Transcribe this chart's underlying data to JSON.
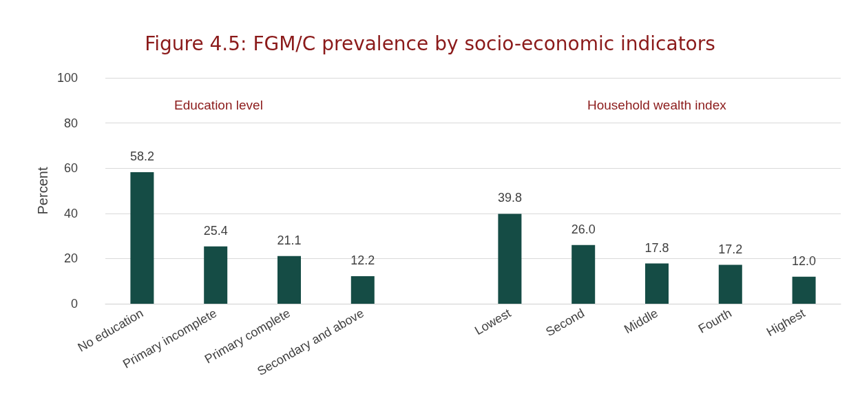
{
  "chart_data": {
    "type": "bar",
    "title": "Figure 4.5: FGM/C prevalence by socio-economic indicators",
    "ylabel": "Percent",
    "categories": [
      "No education",
      "Primary incomplete",
      "Primary complete",
      "Secondary and above",
      null,
      "Lowest",
      "Second",
      "Middle",
      "Fourth",
      "Highest"
    ],
    "values": [
      58.2,
      25.4,
      21.1,
      12.2,
      null,
      39.8,
      26.0,
      17.8,
      17.2,
      12.0
    ],
    "value_labels": [
      "58.2",
      "25.4",
      "21.1",
      "12.2",
      null,
      "39.8",
      "26.0",
      "17.8",
      "17.2",
      "12.0"
    ],
    "color": "#154c45",
    "ylim": [
      0,
      100
    ],
    "yticks": [
      0,
      20,
      40,
      60,
      80,
      100
    ],
    "grid": "y",
    "annotations": [
      "Education level",
      "Household wealth index"
    ]
  }
}
